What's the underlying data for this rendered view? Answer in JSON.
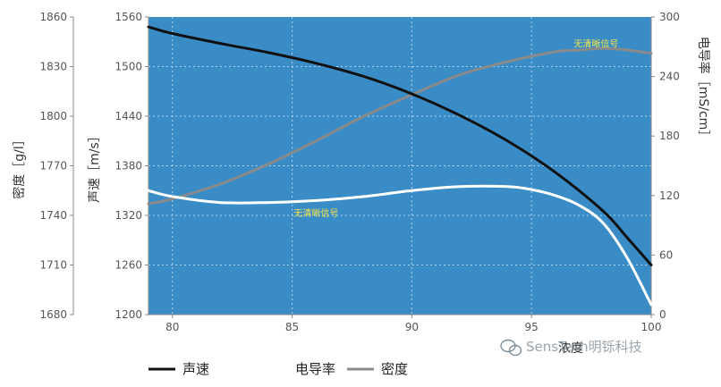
{
  "chart_data": {
    "type": "line",
    "x_ticks": [
      "80",
      "85",
      "90",
      "95",
      "100"
    ],
    "xlim": [
      79,
      100
    ],
    "xlabel": "浓度",
    "axes": {
      "density": {
        "ylabel": "密度［g/l］",
        "ylim": [
          1680,
          1860
        ],
        "ticks": [
          "1680",
          "1710",
          "1740",
          "1770",
          "1800",
          "1830",
          "1860"
        ]
      },
      "speed": {
        "ylabel": "声速［m/s］",
        "ylim": [
          1200,
          1560
        ],
        "ticks": [
          "1200",
          "1260",
          "1320",
          "1380",
          "1440",
          "1500",
          "1560"
        ]
      },
      "conductivity": {
        "ylabel": "电导率［mS/cm］",
        "ylim": [
          0,
          300
        ],
        "ticks": [
          "0",
          "60",
          "120",
          "180",
          "240",
          "300"
        ]
      }
    },
    "series": [
      {
        "name": "声速",
        "axis": "speed",
        "color": "#111111",
        "x": [
          79,
          80,
          82,
          84,
          86,
          88,
          90,
          92,
          94,
          96,
          98,
          99,
          100
        ],
        "values": [
          1548,
          1540,
          1528,
          1517,
          1504,
          1488,
          1467,
          1441,
          1410,
          1372,
          1325,
          1293,
          1260
        ]
      },
      {
        "name": "电导率",
        "axis": "conductivity",
        "color": "#ffffff",
        "x": [
          79,
          80,
          82,
          84,
          86,
          88,
          90,
          92,
          94,
          95,
          96,
          97,
          98,
          99,
          100
        ],
        "values": [
          125,
          119,
          113,
          113,
          115,
          119,
          125,
          129,
          129,
          126,
          120,
          110,
          92,
          57,
          10
        ]
      },
      {
        "name": "密度",
        "axis": "density",
        "color": "#8a8a8a",
        "x": [
          79,
          80,
          82,
          84,
          86,
          88,
          90,
          92,
          94,
          96,
          97,
          98,
          99,
          100
        ],
        "values": [
          1747,
          1750,
          1759,
          1771,
          1785,
          1800,
          1813,
          1825,
          1833,
          1839,
          1840,
          1841,
          1840,
          1838
        ]
      }
    ],
    "annotations": [
      {
        "text": "无清晰信号",
        "x": 97.7,
        "y_fraction": 0.9
      },
      {
        "text": "无清晰信号",
        "x": 86.0,
        "y_fraction": 0.33
      }
    ],
    "grid": true,
    "legend_position": "bottom",
    "plot_background": "#3a8cc7"
  },
  "legend": {
    "speed": "声速",
    "conductivity": "电导率",
    "density": "密度"
  },
  "watermark": "SensTech明铄科技"
}
